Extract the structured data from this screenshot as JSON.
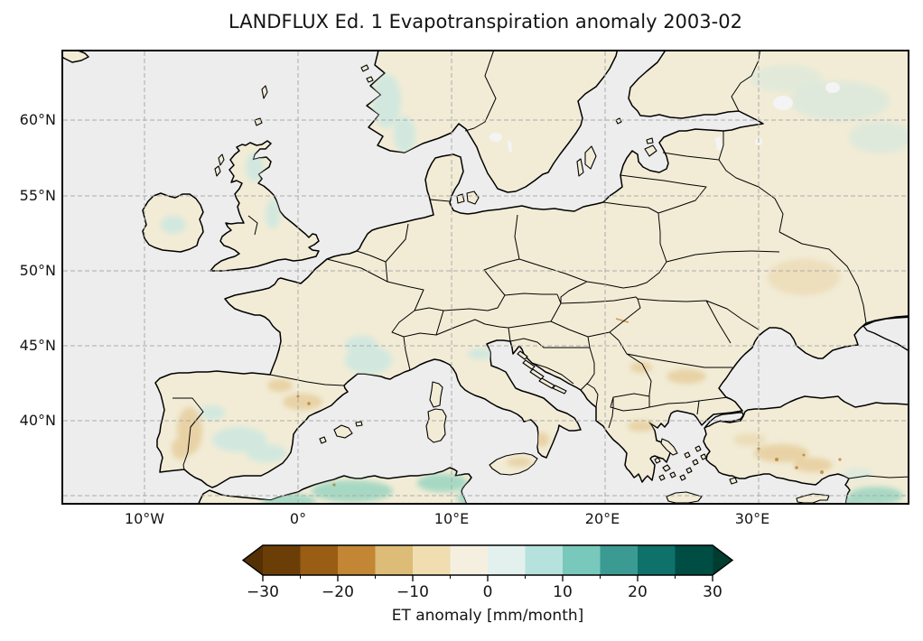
{
  "title": "LANDFLUX Ed. 1 Evapotranspiration anomaly 2003-02",
  "map": {
    "lat_tick_labels": [
      "60°N",
      "55°N",
      "50°N",
      "45°N",
      "40°N"
    ],
    "lon_tick_labels": [
      "10°W",
      "0°",
      "10°E",
      "20°E",
      "30°E"
    ]
  },
  "colorbar": {
    "label": "ET anomaly [mm/month]",
    "tick_labels": [
      "−30",
      "−20",
      "−10",
      "0",
      "10",
      "20",
      "30"
    ],
    "tick_values": [
      -30,
      -20,
      -10,
      0,
      10,
      20,
      30
    ],
    "minor_tick_values": [
      -25,
      -15,
      -5,
      5,
      15,
      25
    ],
    "segment_colors": [
      "#6b3e07",
      "#995d13",
      "#c28634",
      "#dcbc76",
      "#f0deb1",
      "#f5efe0",
      "#e2f0ee",
      "#b5e2dc",
      "#79c8bc",
      "#3b9b93",
      "#0e726a",
      "#004d43"
    ],
    "under_arrow_color": "#543005",
    "over_arrow_color": "#003c30"
  },
  "colors": {
    "background": "#ffffff",
    "ocean": "#ededed",
    "land": "#f2ecd6",
    "lake": "#f4f4f4",
    "coastline": "#000000",
    "border": "#000000",
    "gridline": "#ababab",
    "tint_bluegreen": "#cfe8e0",
    "tint_teal": "#9fd6c3",
    "tint_tan": "#e7d0a0",
    "speckle_brown": "#b07a28"
  }
}
